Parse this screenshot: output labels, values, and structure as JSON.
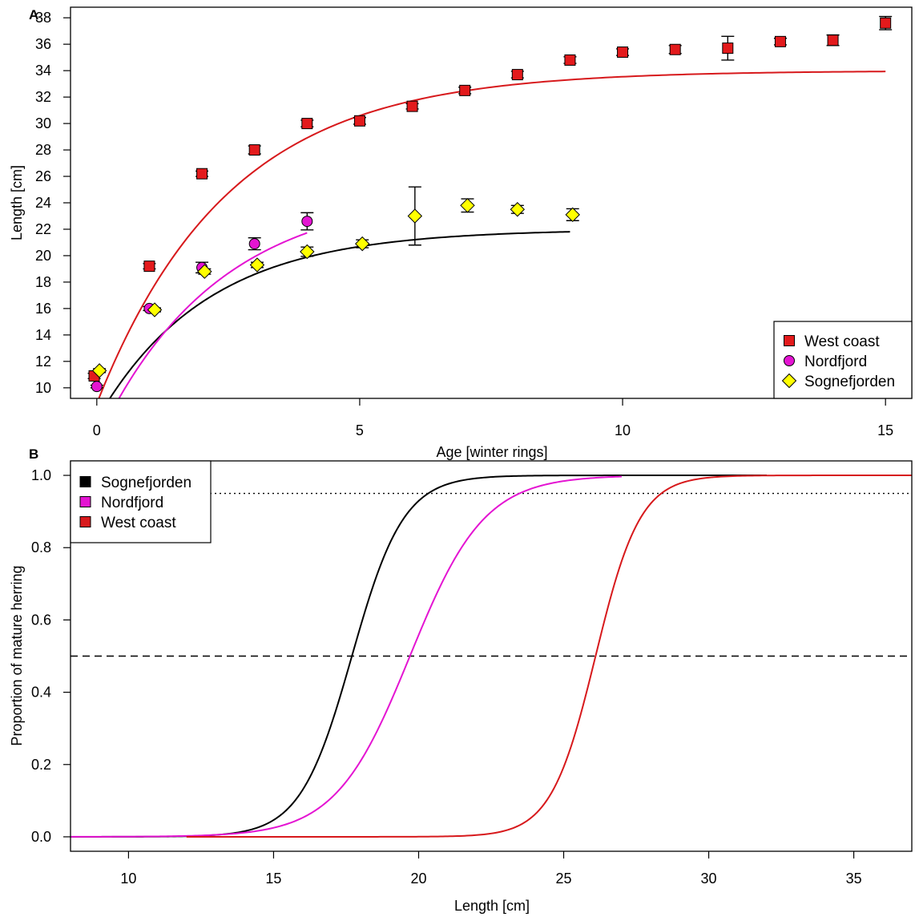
{
  "chart_data": [
    {
      "panel_label": "A",
      "type": "scatter",
      "xlabel": "Age [winter rings]",
      "ylabel": "Length [cm]",
      "xlim": [
        -0.5,
        15.5
      ],
      "ylim": [
        9.2,
        38.8
      ],
      "xticks": [
        0,
        5,
        10,
        15
      ],
      "yticks": [
        10,
        12,
        14,
        16,
        18,
        20,
        22,
        24,
        26,
        28,
        30,
        32,
        34,
        36,
        38
      ],
      "legend_position": "bottom-right",
      "series": [
        {
          "name": "West coast",
          "marker": "square",
          "color": "#e31a1c",
          "x": [
            -0.05,
            1,
            2,
            3,
            4,
            5,
            6,
            7,
            8,
            9,
            10,
            11,
            12,
            13,
            14,
            15
          ],
          "y": [
            10.9,
            19.2,
            26.2,
            28.0,
            30.0,
            30.2,
            31.3,
            32.5,
            33.7,
            34.8,
            35.4,
            35.6,
            35.7,
            36.2,
            36.3,
            37.6
          ],
          "err": [
            0.2,
            0.2,
            0.2,
            0.3,
            0.25,
            0.25,
            0.2,
            0.25,
            0.25,
            0.25,
            0.25,
            0.3,
            0.9,
            0.25,
            0.4,
            0.5
          ],
          "fit": {
            "model": "von Bertalanffy",
            "linf": 34.0,
            "k": 0.4,
            "t0": -0.75,
            "xmin": -0.45,
            "xmax": 15
          }
        },
        {
          "name": "Nordfjord",
          "marker": "circle",
          "color": "#e414d2",
          "x": [
            0,
            1,
            2,
            3,
            4
          ],
          "y": [
            10.1,
            16.0,
            19.1,
            20.9,
            22.6
          ],
          "err": [
            0.1,
            0.15,
            0.4,
            0.45,
            0.65
          ],
          "fit": {
            "model": "von Bertalanffy",
            "linf": 25.0,
            "k": 0.44,
            "t0": -0.62,
            "xmin": -0.25,
            "xmax": 4
          }
        },
        {
          "name": "Sognefjorden",
          "marker": "diamond",
          "color": "#ffff00",
          "x": [
            0.05,
            1.1,
            2.05,
            3.05,
            4.0,
            5.05,
            6.05,
            7.05,
            8.0,
            9.05
          ],
          "y": [
            11.3,
            15.9,
            18.8,
            19.3,
            20.3,
            20.9,
            23.0,
            23.8,
            23.5,
            23.1
          ],
          "err": [
            0.15,
            0.15,
            0.2,
            0.2,
            0.35,
            0.3,
            2.2,
            0.5,
            0.3,
            0.45
          ],
          "fit": {
            "model": "von Bertalanffy",
            "linf": 22.0,
            "k": 0.48,
            "t0": -0.88,
            "xmin": -0.4,
            "xmax": 9
          }
        }
      ]
    },
    {
      "panel_label": "B",
      "type": "line",
      "xlabel": "Length [cm]",
      "ylabel": "Proportion of mature herring",
      "xlim": [
        8,
        37
      ],
      "ylim": [
        -0.04,
        1.04
      ],
      "xticks": [
        10,
        15,
        20,
        25,
        30,
        35
      ],
      "yticks": [
        "0.0",
        "0.2",
        "0.4",
        "0.6",
        "0.8",
        "1.0"
      ],
      "reference_lines": [
        {
          "y": 0.5,
          "style": "dashed"
        },
        {
          "y": 0.95,
          "style": "dotted"
        }
      ],
      "legend_position": "top-left",
      "series": [
        {
          "name": "Sognefjorden",
          "color": "#000000",
          "model": "logistic",
          "l50": 17.7,
          "slope": 1.12,
          "xmin": 8,
          "xmax": 32
        },
        {
          "name": "Nordfjord",
          "color": "#e414d2",
          "model": "logistic",
          "l50": 19.7,
          "slope": 0.78,
          "xmin": 8,
          "xmax": 27
        },
        {
          "name": "West coast",
          "color": "#d7191c",
          "model": "logistic",
          "l50": 26.1,
          "slope": 1.3,
          "xmin": 12,
          "xmax": 37
        }
      ]
    }
  ]
}
